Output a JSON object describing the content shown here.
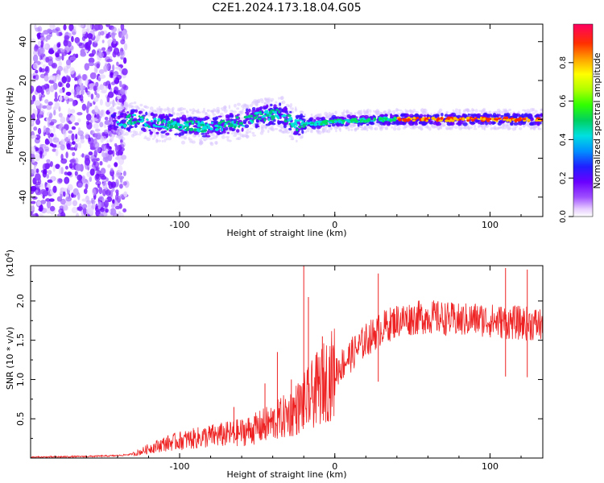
{
  "title": "C2E1.2024.173.18.04.G05",
  "colors": {
    "snr_line": "#ee2222",
    "background": "#ffffff",
    "axis": "#000000"
  },
  "chart_data": [
    {
      "type": "heatmap",
      "xlabel": "Height of straight line (km)",
      "ylabel": "Frequency (Hz)",
      "xlim": [
        -196,
        134
      ],
      "ylim": [
        -50,
        49
      ],
      "x_ticks": [
        -100,
        0,
        100
      ],
      "y_ticks": [
        -40,
        -20,
        0,
        20,
        40
      ],
      "colorbar": {
        "label": "Normalized spectral amplitude",
        "range": [
          0.0,
          1.0
        ],
        "ticks": [
          "0.0",
          "0.2",
          "0.4",
          "0.6",
          "0.8"
        ]
      },
      "ridge": [
        {
          "x": -140,
          "y": -2
        },
        {
          "x": -130,
          "y": 0
        },
        {
          "x": -120,
          "y": -2
        },
        {
          "x": -100,
          "y": -3
        },
        {
          "x": -80,
          "y": -4
        },
        {
          "x": -60,
          "y": -1
        },
        {
          "x": -45,
          "y": 2
        },
        {
          "x": -35,
          "y": 3
        },
        {
          "x": -25,
          "y": -3
        },
        {
          "x": -10,
          "y": -2
        },
        {
          "x": 0,
          "y": -1
        },
        {
          "x": 30,
          "y": 0
        },
        {
          "x": 60,
          "y": 0
        },
        {
          "x": 100,
          "y": 0
        },
        {
          "x": 134,
          "y": 0
        }
      ]
    },
    {
      "type": "line",
      "xlabel": "Height of straight line (km)",
      "ylabel": "SNR (10 * v/v)",
      "yscale_label": "(x10",
      "yscale_exponent": "4",
      "yscale_suffix": ")",
      "xlim": [
        -196,
        134
      ],
      "ylim": [
        0,
        2.45
      ],
      "x_ticks": [
        -100,
        0,
        100
      ],
      "y_ticks": [
        0.5,
        1.0,
        1.5,
        2.0
      ],
      "y_tick_labels": [
        "0.5",
        "1.0",
        "1.5",
        "2.0"
      ],
      "series": [
        {
          "x": [
            -196,
            -160,
            -140,
            -130,
            -125,
            -120,
            -110,
            -100,
            -90,
            -80,
            -70,
            -60,
            -50,
            -45,
            -40,
            -35,
            -30,
            -25,
            -20,
            -15,
            -10,
            -5,
            0,
            10,
            20,
            30,
            40,
            50,
            60,
            70,
            80,
            90,
            100,
            110,
            120,
            134
          ],
          "y": [
            0.01,
            0.02,
            0.03,
            0.05,
            0.08,
            0.12,
            0.18,
            0.22,
            0.25,
            0.28,
            0.3,
            0.33,
            0.38,
            0.42,
            0.45,
            0.5,
            0.55,
            0.62,
            0.7,
            0.8,
            0.9,
            1.0,
            1.1,
            1.3,
            1.5,
            1.65,
            1.75,
            1.78,
            1.8,
            1.78,
            1.75,
            1.77,
            1.75,
            1.73,
            1.72,
            1.7
          ],
          "spikes": [
            {
              "x": -65,
              "y": 0.65
            },
            {
              "x": -45,
              "y": 0.95
            },
            {
              "x": -37,
              "y": 1.35
            },
            {
              "x": -28,
              "y": 1.0
            },
            {
              "x": -20,
              "y": 2.45
            },
            {
              "x": -17,
              "y": 2.05
            },
            {
              "x": -8,
              "y": 1.55
            },
            {
              "x": 28,
              "y": 2.35
            },
            {
              "x": 110,
              "y": 2.42
            },
            {
              "x": 124,
              "y": 2.4
            }
          ]
        }
      ]
    }
  ]
}
